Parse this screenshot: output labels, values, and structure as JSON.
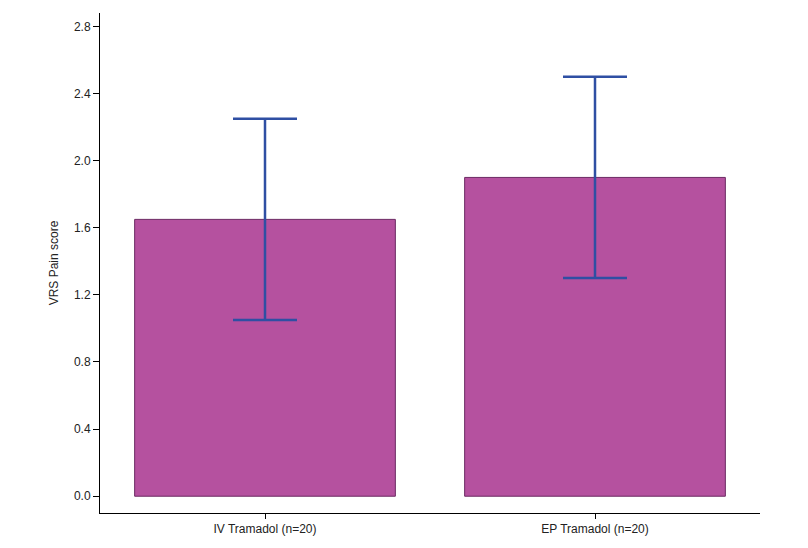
{
  "chart_data": {
    "type": "bar",
    "y_label": "VRS Pain score",
    "categories": [
      "IV Tramadol (n=20)",
      "EP Tramadol (n=20)"
    ],
    "values": [
      1.65,
      1.9
    ],
    "errors": [
      0.6,
      0.6
    ],
    "color": "#b5519f",
    "ylim": [
      -0.1,
      2.88
    ],
    "yticks": [
      {
        "value": 0,
        "label": "0.0"
      },
      0.4,
      0.8,
      1.2,
      1.6,
      {
        "value": 2,
        "label": "2.0"
      },
      2.4,
      2.8
    ],
    "grid": false
  }
}
